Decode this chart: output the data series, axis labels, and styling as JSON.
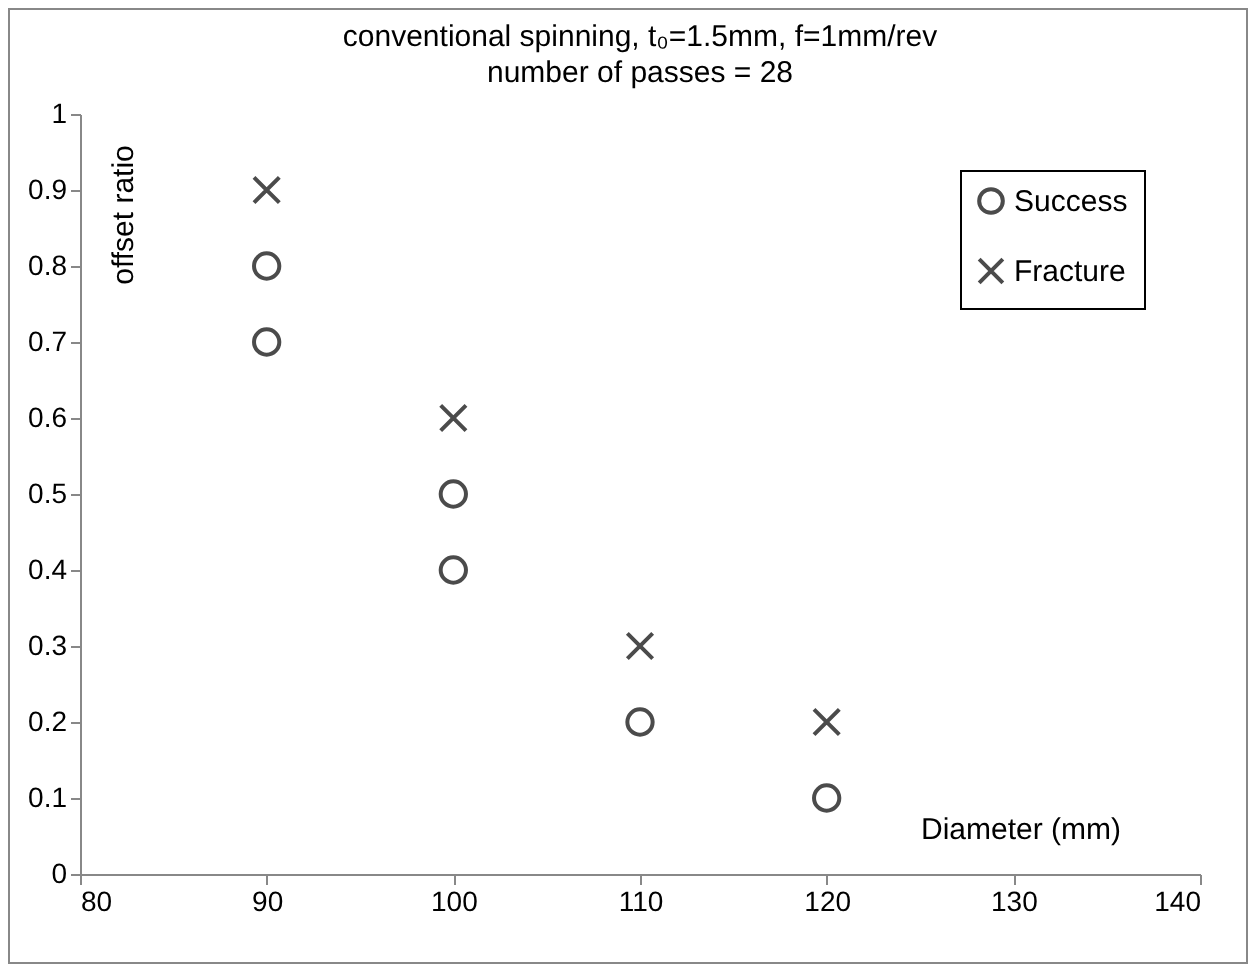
{
  "chart_data": {
    "type": "scatter",
    "title": "conventional spinning, t₀=1.5mm, f=1mm/rev",
    "subtitle": "number of passes = 28",
    "xlabel": "Diameter (mm)",
    "ylabel": "offset ratio",
    "series": [
      {
        "name": "Success",
        "color": "#000000",
        "marker": "circle",
        "x": [
          90,
          90,
          100,
          100,
          110,
          120
        ],
        "values": [
          0.8,
          0.7,
          0.5,
          0.4,
          0.2,
          0.1
        ]
      },
      {
        "name": "Fracture",
        "color": "#000000",
        "marker": "cross",
        "x": [
          90,
          100,
          110,
          120
        ],
        "values": [
          0.9,
          0.6,
          0.3,
          0.2
        ]
      }
    ],
    "xlim": [
      80,
      140
    ],
    "xticks": [
      80,
      90,
      100,
      110,
      120,
      130,
      140
    ],
    "ylim": [
      0,
      1
    ],
    "yticks": [
      0,
      0.1,
      0.2,
      0.3,
      0.4,
      0.5,
      0.6,
      0.7,
      0.8,
      0.9,
      1
    ],
    "grid": false,
    "legend": "top right"
  }
}
